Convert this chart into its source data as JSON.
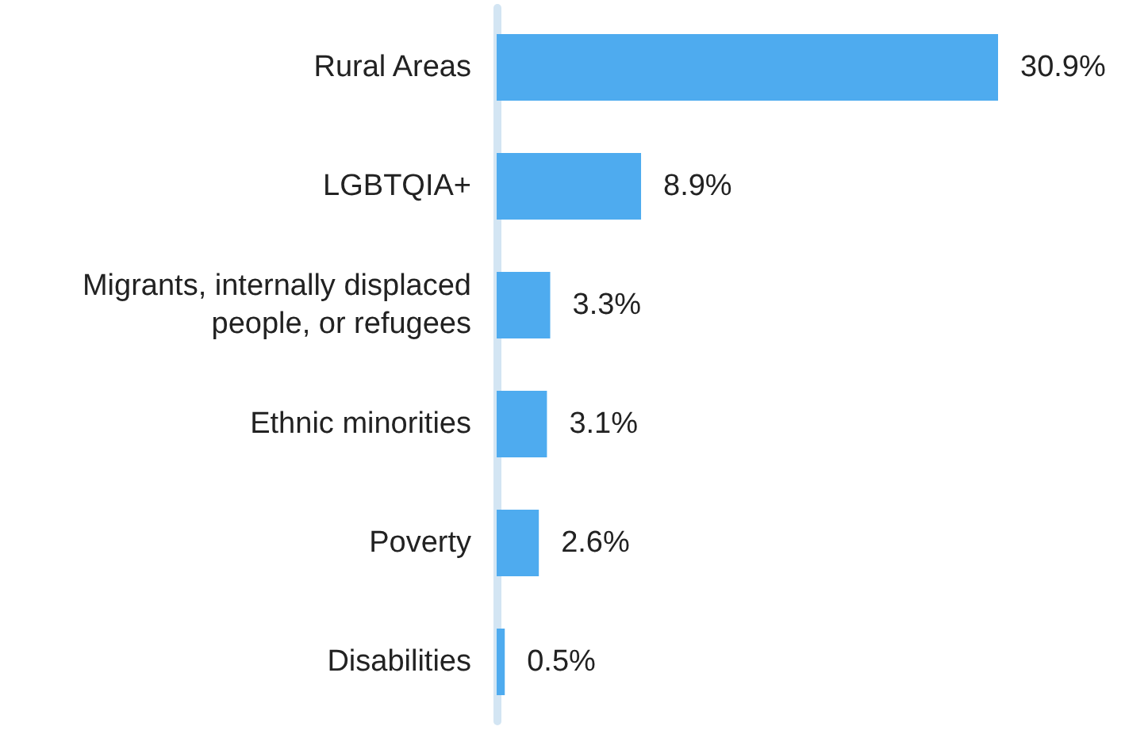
{
  "chart_data": {
    "type": "bar",
    "orientation": "horizontal",
    "categories": [
      "Rural Areas",
      "LGBTQIA+",
      "Migrants, internally displaced\npeople, or refugees",
      "Ethnic minorities",
      "Poverty",
      "Disabilities"
    ],
    "values": [
      30.9,
      8.9,
      3.3,
      3.1,
      2.6,
      0.5
    ],
    "value_labels": [
      "30.9%",
      "8.9%",
      "3.3%",
      "3.1%",
      "2.6%",
      "0.5%"
    ],
    "color": "#4eabef"
  }
}
